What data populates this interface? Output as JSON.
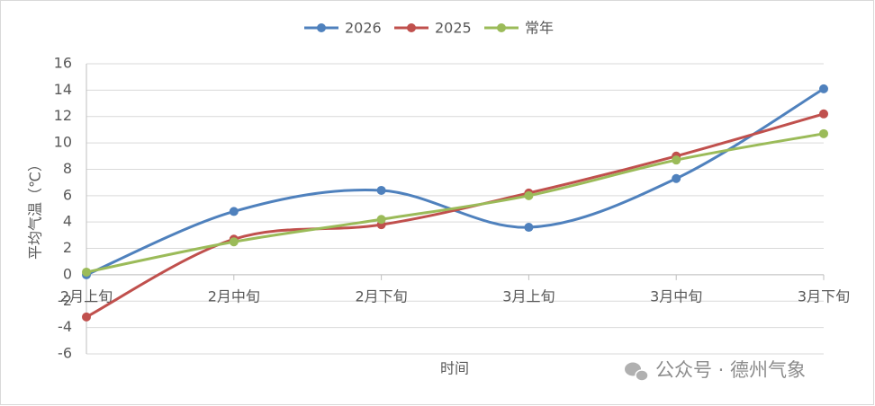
{
  "chart_data": {
    "type": "line",
    "categories": [
      "2月上旬",
      "2月中旬",
      "2月下旬",
      "3月上旬",
      "3月中旬",
      "3月下旬"
    ],
    "series": [
      {
        "name": "2026",
        "color": "#4f81bd",
        "values": [
          0.0,
          4.8,
          6.4,
          3.6,
          7.3,
          14.1
        ]
      },
      {
        "name": "2025",
        "color": "#c0504d",
        "values": [
          -3.2,
          2.7,
          3.8,
          6.2,
          9.0,
          12.2
        ]
      },
      {
        "name": "常年",
        "color": "#9bbb59",
        "values": [
          0.2,
          2.5,
          4.2,
          6.0,
          8.7,
          10.7
        ]
      }
    ],
    "ylim": [
      -6,
      16
    ],
    "yticks": [
      -6,
      -4,
      -2,
      0,
      2,
      4,
      6,
      8,
      10,
      12,
      14,
      16
    ],
    "y_label": "平均气温（℃）",
    "x_label": "时间",
    "grid": true,
    "smooth": true,
    "legend": "top"
  },
  "watermark": "公众号 · 德州气象"
}
